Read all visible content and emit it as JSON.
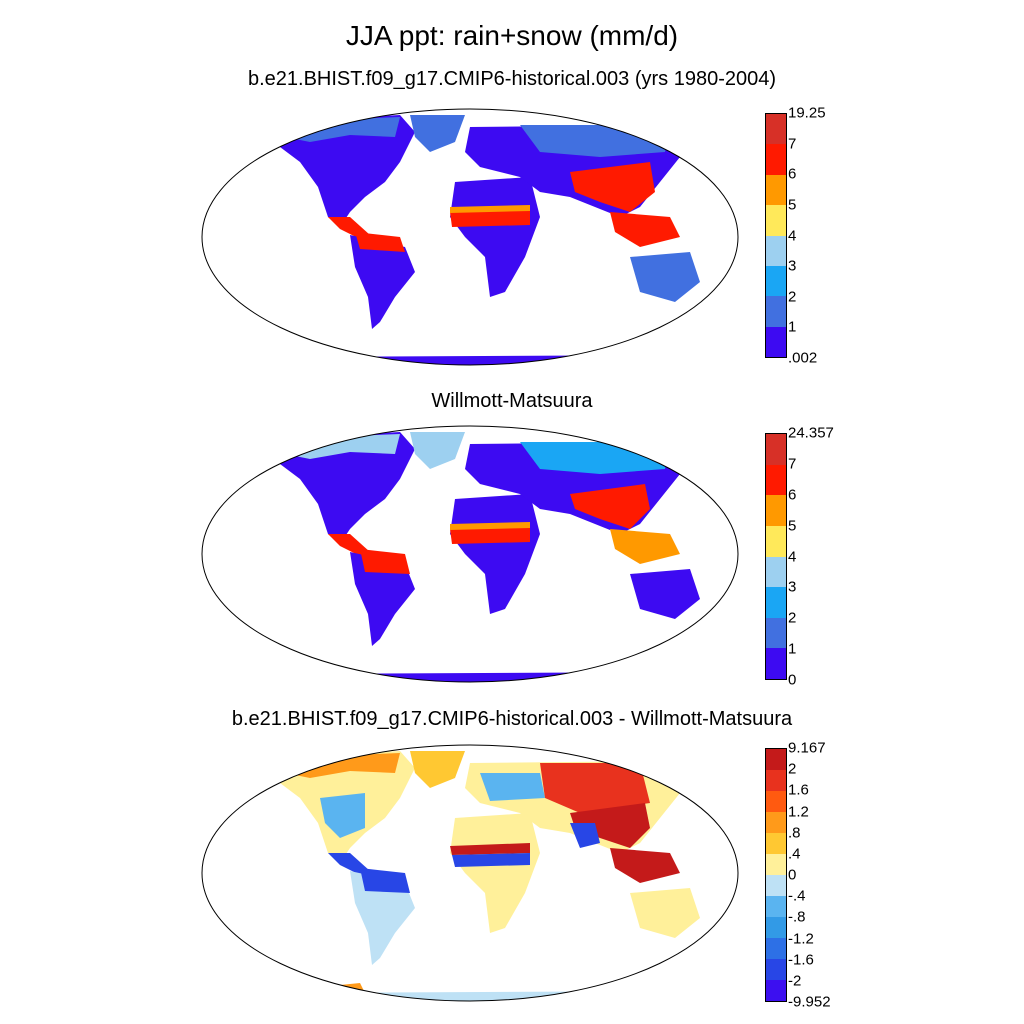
{
  "figure": {
    "title": "JJA ppt: rain+snow (mm/d)"
  },
  "panels": [
    {
      "title": "b.e21.BHIST.f09_g17.CMIP6-historical.003 (yrs 1980-2004)",
      "colorbar": {
        "labels": [
          "19.25",
          "7",
          "6",
          "5",
          "4",
          "3",
          "2",
          "1",
          ".002"
        ],
        "colors": [
          "#d73027",
          "#ff1a00",
          "#ff9900",
          "#ffe95a",
          "#9dd0f0",
          "#1aa6f4",
          "#4170e0",
          "#3d0af2"
        ]
      }
    },
    {
      "title": "Willmott-Matsuura",
      "colorbar": {
        "labels": [
          "24.357",
          "7",
          "6",
          "5",
          "4",
          "3",
          "2",
          "1",
          "0"
        ],
        "colors": [
          "#d73027",
          "#ff1a00",
          "#ff9900",
          "#ffe95a",
          "#9dd0f0",
          "#1aa6f4",
          "#4170e0",
          "#3d0af2"
        ]
      }
    },
    {
      "title": "b.e21.BHIST.f09_g17.CMIP6-historical.003 - Willmott-Matsuura",
      "colorbar": {
        "labels": [
          "9.167",
          "2",
          "1.6",
          "1.2",
          ".8",
          ".4",
          "0",
          "-.4",
          "-.8",
          "-1.2",
          "-1.6",
          "-2",
          "-9.952"
        ],
        "colors": [
          "#c41a1a",
          "#e8321e",
          "#ff5a10",
          "#ff9a1a",
          "#ffc832",
          "#fff09a",
          "#bee1f5",
          "#5ab4f0",
          "#329ae6",
          "#2d70e6",
          "#2846e6",
          "#3c0ff0"
        ]
      }
    }
  ]
}
